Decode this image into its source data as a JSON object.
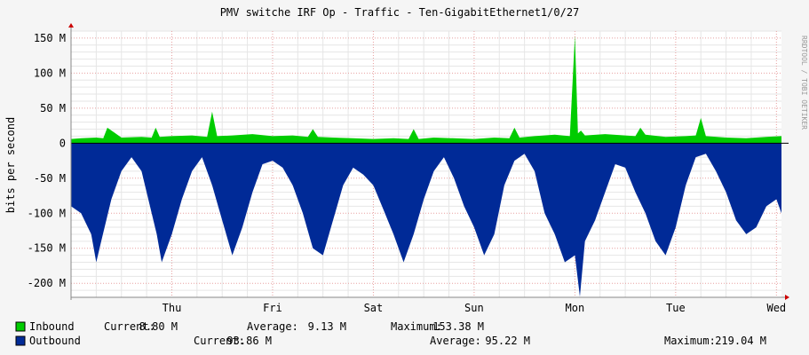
{
  "chart_data": {
    "type": "area",
    "title": "PMV switche IRF Op - Traffic - Ten-GigabitEthernet1/0/27",
    "ylabel": "bits per second",
    "watermark": "RRDTOOL / TOBI OETIKER",
    "ylim": [
      -220,
      160
    ],
    "y_unit": "M",
    "y_ticks": [
      150,
      100,
      50,
      0,
      -50,
      -100,
      -150,
      -200
    ],
    "y_tick_labels": [
      "150 M",
      "100 M",
      "50 M",
      "0",
      "-50 M",
      "-100 M",
      "-150 M",
      "-200 M"
    ],
    "x_tick_labels": [
      "Thu",
      "Fri",
      "Sat",
      "Sun",
      "Mon",
      "Tue",
      "Wed"
    ],
    "x_ticks": [
      1,
      2,
      3,
      4,
      5,
      6,
      7
    ],
    "xlim": [
      0,
      7.05
    ],
    "grid": true,
    "series": [
      {
        "name": "Inbound",
        "color": "#00cc00",
        "x": [
          0,
          0.1,
          0.25,
          0.32,
          0.36,
          0.5,
          0.7,
          0.8,
          0.84,
          0.88,
          1.0,
          1.2,
          1.35,
          1.4,
          1.45,
          1.6,
          1.8,
          2.0,
          2.2,
          2.35,
          2.4,
          2.45,
          2.6,
          2.8,
          3.0,
          3.2,
          3.35,
          3.4,
          3.45,
          3.6,
          3.8,
          4.0,
          4.2,
          4.35,
          4.4,
          4.45,
          4.6,
          4.8,
          4.95,
          5.0,
          5.03,
          5.06,
          5.1,
          5.3,
          5.5,
          5.6,
          5.65,
          5.7,
          5.9,
          6.1,
          6.2,
          6.25,
          6.3,
          6.5,
          6.7,
          6.9,
          7.05
        ],
        "values": [
          6,
          7,
          8,
          7,
          22,
          8,
          9,
          8,
          22,
          9,
          10,
          11,
          9,
          45,
          10,
          11,
          13,
          10,
          11,
          9,
          20,
          9,
          8,
          7,
          6,
          7,
          6,
          20,
          6,
          8,
          7,
          6,
          8,
          7,
          22,
          8,
          10,
          12,
          10,
          153.38,
          14,
          18,
          11,
          13,
          11,
          10,
          22,
          12,
          9,
          10,
          11,
          36,
          10,
          8,
          7,
          9,
          10
        ]
      },
      {
        "name": "Outbound",
        "color": "#002a97",
        "x": [
          0,
          0.1,
          0.2,
          0.25,
          0.3,
          0.4,
          0.5,
          0.6,
          0.7,
          0.8,
          0.85,
          0.9,
          1.0,
          1.1,
          1.2,
          1.3,
          1.4,
          1.5,
          1.6,
          1.7,
          1.8,
          1.9,
          2.0,
          2.1,
          2.2,
          2.3,
          2.4,
          2.5,
          2.6,
          2.7,
          2.8,
          2.9,
          3.0,
          3.1,
          3.2,
          3.3,
          3.4,
          3.5,
          3.6,
          3.7,
          3.8,
          3.9,
          4.0,
          4.1,
          4.2,
          4.3,
          4.4,
          4.5,
          4.6,
          4.7,
          4.8,
          4.9,
          5.0,
          5.05,
          5.1,
          5.2,
          5.3,
          5.4,
          5.5,
          5.6,
          5.7,
          5.8,
          5.9,
          6.0,
          6.1,
          6.2,
          6.3,
          6.4,
          6.5,
          6.6,
          6.7,
          6.8,
          6.9,
          7.0,
          7.05
        ],
        "values": [
          -90,
          -100,
          -130,
          -170,
          -140,
          -80,
          -40,
          -20,
          -40,
          -100,
          -130,
          -170,
          -130,
          -80,
          -40,
          -20,
          -60,
          -110,
          -160,
          -120,
          -70,
          -30,
          -25,
          -35,
          -60,
          -100,
          -150,
          -160,
          -110,
          -60,
          -35,
          -45,
          -60,
          -95,
          -130,
          -170,
          -130,
          -80,
          -40,
          -20,
          -50,
          -90,
          -120,
          -160,
          -130,
          -60,
          -25,
          -15,
          -40,
          -100,
          -130,
          -170,
          -160,
          -219.04,
          -140,
          -110,
          -70,
          -30,
          -35,
          -70,
          -100,
          -140,
          -160,
          -120,
          -60,
          -20,
          -15,
          -40,
          -70,
          -110,
          -130,
          -120,
          -90,
          -80,
          -100
        ]
      }
    ],
    "legend": [
      {
        "name": "Inbound",
        "color": "#00cc00",
        "current_label": "Current:",
        "current": "8.80 M",
        "average_label": "Average:",
        "average": "9.13 M",
        "maximum_label": "Maximum:",
        "maximum": "153.38 M"
      },
      {
        "name": "Outbound",
        "color": "#002a97",
        "current_label": "Current:",
        "current": "93.86 M",
        "average_label": "Average:",
        "average": "95.22 M",
        "maximum_label": "Maximum:",
        "maximum": "219.04 M"
      }
    ]
  }
}
